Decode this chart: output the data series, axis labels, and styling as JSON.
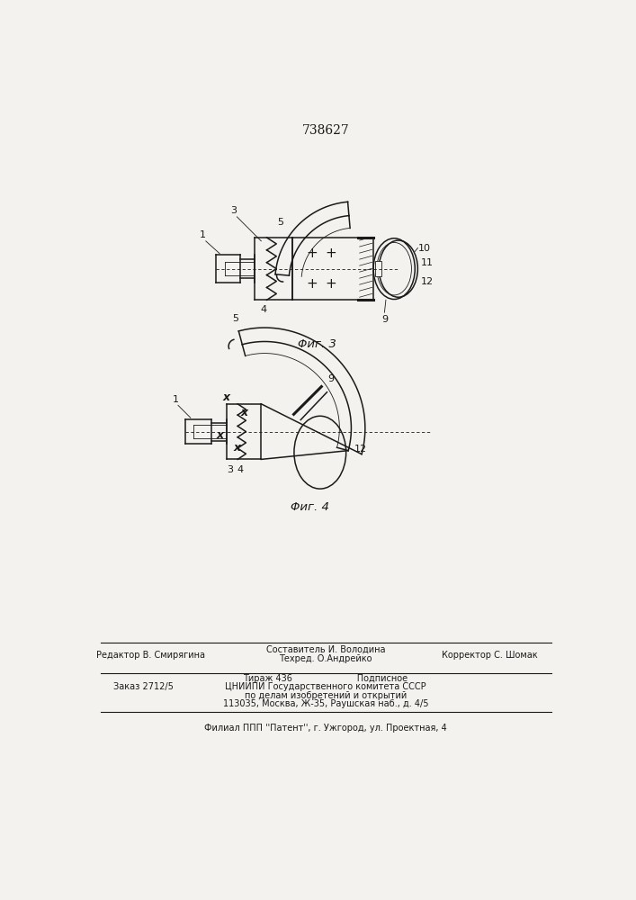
{
  "patent_number": "738627",
  "fig3_caption": "Φиг. 3",
  "fig4_caption": "Φиг. 4",
  "bg_color": "#f4f2ee",
  "line_color": "#1a1a1a",
  "footer": {
    "line1_left": "Редактор В. Смирягина",
    "line1_center_l1": "Составитель И. Володина",
    "line1_center_l2": "Техред. О.Андрейко",
    "line1_right": "Корректор С. Шомак",
    "line2_left": "Заказ 2712/5",
    "line2_center_l1": "Тираж 436                       Подписное",
    "line2_center_l2": "ЦНИИПИ Государственного комитета СССР",
    "line2_center_l3": "по делам изобретений и открытий",
    "line2_center_l4": "113035, Москва, Ж-35, Раушская наб., д. 4/5",
    "line3": "Филиал ППП ''Патент'', г. Ужгород, ул. Проектная, 4"
  }
}
